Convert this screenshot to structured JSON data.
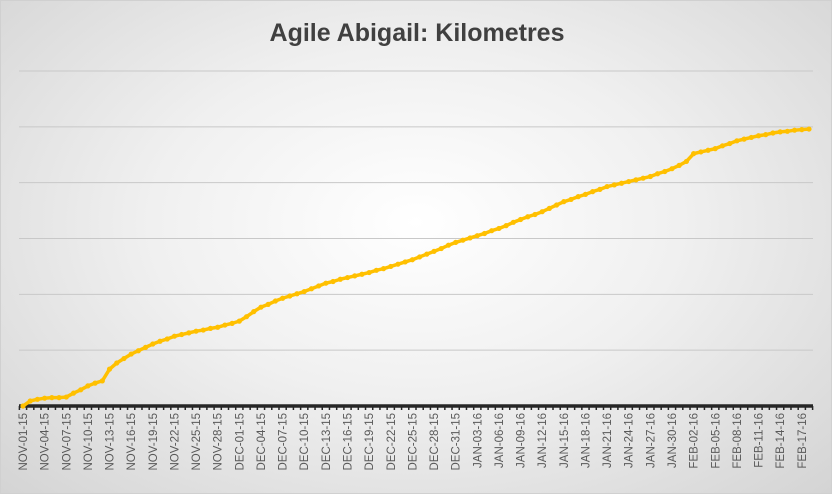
{
  "chart_data": {
    "type": "line",
    "title": "Agile Abigail: Kilometres",
    "xlabel": "",
    "ylabel": "",
    "ylim": [
      0,
      6
    ],
    "y_tick_labels_shown": false,
    "grid": true,
    "legend": "none",
    "line_color": "#FFC000",
    "axis_color": "#262626",
    "tick_labels": [
      "NOV-01-15",
      "NOV-04-15",
      "NOV-07-15",
      "NOV-10-15",
      "NOV-13-15",
      "NOV-16-15",
      "NOV-19-15",
      "NOV-22-15",
      "NOV-25-15",
      "NOV-28-15",
      "DEC-01-15",
      "DEC-04-15",
      "DEC-07-15",
      "DEC-10-15",
      "DEC-13-15",
      "DEC-16-15",
      "DEC-19-15",
      "DEC-22-15",
      "DEC-25-15",
      "DEC-28-15",
      "DEC-31-15",
      "JAN-03-16",
      "JAN-06-16",
      "JAN-09-16",
      "JAN-12-16",
      "JAN-15-16",
      "JAN-18-16",
      "JAN-21-16",
      "JAN-24-16",
      "JAN-27-16",
      "JAN-30-16",
      "FEB-02-16",
      "FEB-05-16",
      "FEB-08-16",
      "FEB-11-16",
      "FEB-14-16",
      "FEB-17-16"
    ],
    "x": [
      "NOV-01-15",
      "NOV-02-15",
      "NOV-03-15",
      "NOV-04-15",
      "NOV-05-15",
      "NOV-06-15",
      "NOV-07-15",
      "NOV-08-15",
      "NOV-09-15",
      "NOV-10-15",
      "NOV-11-15",
      "NOV-12-15",
      "NOV-13-15",
      "NOV-14-15",
      "NOV-15-15",
      "NOV-16-15",
      "NOV-17-15",
      "NOV-18-15",
      "NOV-19-15",
      "NOV-20-15",
      "NOV-21-15",
      "NOV-22-15",
      "NOV-23-15",
      "NOV-24-15",
      "NOV-25-15",
      "NOV-26-15",
      "NOV-27-15",
      "NOV-28-15",
      "NOV-29-15",
      "NOV-30-15",
      "DEC-01-15",
      "DEC-02-15",
      "DEC-03-15",
      "DEC-04-15",
      "DEC-05-15",
      "DEC-06-15",
      "DEC-07-15",
      "DEC-08-15",
      "DEC-09-15",
      "DEC-10-15",
      "DEC-11-15",
      "DEC-12-15",
      "DEC-13-15",
      "DEC-14-15",
      "DEC-15-15",
      "DEC-16-15",
      "DEC-17-15",
      "DEC-18-15",
      "DEC-19-15",
      "DEC-20-15",
      "DEC-21-15",
      "DEC-22-15",
      "DEC-23-15",
      "DEC-24-15",
      "DEC-25-15",
      "DEC-26-15",
      "DEC-27-15",
      "DEC-28-15",
      "DEC-29-15",
      "DEC-30-15",
      "DEC-31-15",
      "JAN-01-16",
      "JAN-02-16",
      "JAN-03-16",
      "JAN-04-16",
      "JAN-05-16",
      "JAN-06-16",
      "JAN-07-16",
      "JAN-08-16",
      "JAN-09-16",
      "JAN-10-16",
      "JAN-11-16",
      "JAN-12-16",
      "JAN-13-16",
      "JAN-14-16",
      "JAN-15-16",
      "JAN-16-16",
      "JAN-17-16",
      "JAN-18-16",
      "JAN-19-16",
      "JAN-20-16",
      "JAN-21-16",
      "JAN-22-16",
      "JAN-23-16",
      "JAN-24-16",
      "JAN-25-16",
      "JAN-26-16",
      "JAN-27-16",
      "JAN-28-16",
      "JAN-29-16",
      "JAN-30-16",
      "JAN-31-16",
      "FEB-01-16",
      "FEB-02-16",
      "FEB-03-16",
      "FEB-04-16",
      "FEB-05-16",
      "FEB-06-16",
      "FEB-07-16",
      "FEB-08-16",
      "FEB-09-16",
      "FEB-10-16",
      "FEB-11-16",
      "FEB-12-16",
      "FEB-13-16",
      "FEB-14-16",
      "FEB-15-16",
      "FEB-16-16",
      "FEB-17-16",
      "FEB-18-16"
    ],
    "values": [
      0,
      0.09,
      0.12,
      0.14,
      0.15,
      0.15,
      0.16,
      0.23,
      0.29,
      0.36,
      0.41,
      0.45,
      0.66,
      0.77,
      0.85,
      0.93,
      0.99,
      1.05,
      1.11,
      1.16,
      1.2,
      1.25,
      1.28,
      1.31,
      1.34,
      1.36,
      1.39,
      1.41,
      1.45,
      1.48,
      1.52,
      1.6,
      1.69,
      1.77,
      1.82,
      1.88,
      1.93,
      1.97,
      2.01,
      2.05,
      2.1,
      2.15,
      2.2,
      2.23,
      2.27,
      2.3,
      2.33,
      2.36,
      2.39,
      2.43,
      2.46,
      2.5,
      2.54,
      2.58,
      2.62,
      2.67,
      2.72,
      2.77,
      2.82,
      2.88,
      2.93,
      2.97,
      3.01,
      3.05,
      3.09,
      3.14,
      3.18,
      3.23,
      3.29,
      3.34,
      3.39,
      3.43,
      3.48,
      3.54,
      3.6,
      3.66,
      3.7,
      3.75,
      3.79,
      3.84,
      3.88,
      3.93,
      3.96,
      3.99,
      4.02,
      4.05,
      4.08,
      4.11,
      4.16,
      4.2,
      4.25,
      4.31,
      4.38,
      4.52,
      4.55,
      4.58,
      4.61,
      4.66,
      4.7,
      4.75,
      4.78,
      4.81,
      4.84,
      4.86,
      4.89,
      4.91,
      4.92,
      4.94,
      4.95,
      4.96
    ]
  }
}
